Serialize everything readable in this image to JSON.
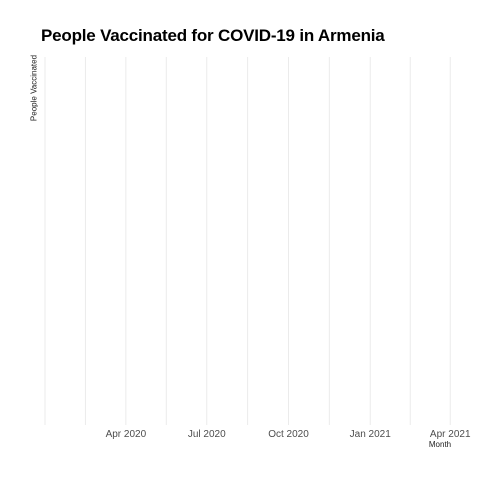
{
  "chart_data": {
    "type": "line",
    "title": "People Vaccinated for COVID-19 in Armenia",
    "xlabel": "Month",
    "ylabel": "People Vaccinated",
    "x_ticks": [
      "2020-01-01",
      "2020-04-01",
      "2020-07-01",
      "2020-10-01",
      "2021-01-01",
      "2021-04-01"
    ],
    "x_tick_labels": [
      "",
      "Apr 2020",
      "Jul 2020",
      "Oct 2020",
      "Jan 2021",
      "Apr 2021"
    ],
    "xlim": [
      "2020-01-01",
      "2021-04-12"
    ],
    "grid": true,
    "series": [
      {
        "x": [],
        "y": []
      }
    ]
  }
}
